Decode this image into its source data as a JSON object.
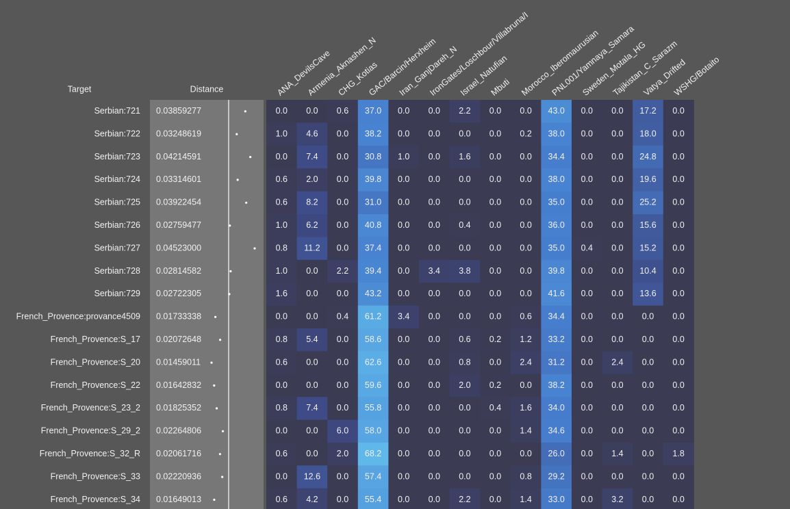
{
  "header": {
    "target": "Target",
    "distance": "Distance",
    "columns": [
      "ANA_DevilsCave",
      "Armenia_Aknashen_N",
      "CHG_Kotias",
      "GAC/Barcin/Herxheim",
      "Iran_GanjDareh_N",
      "IronGates/Loschbour/Villabruna/I",
      "Israel_Natufian",
      "Mbuti",
      "Morocco_Iberomaurusian",
      "PNL001/Yamnaya_Samara",
      "Sweden_Motala_HG",
      "Tajikistan_C_Sarazm",
      "Vatya_Drifted",
      "WSHG/Botaito"
    ]
  },
  "rows": [
    {
      "target": "Serbian:721",
      "distance": "0.03859277",
      "values": [
        "0.0",
        "0.0",
        "0.6",
        "37.0",
        "0.0",
        "0.0",
        "2.2",
        "0.0",
        "0.0",
        "43.0",
        "0.0",
        "0.0",
        "17.2",
        "0.0"
      ]
    },
    {
      "target": "Serbian:722",
      "distance": "0.03248619",
      "values": [
        "1.0",
        "4.6",
        "0.0",
        "38.2",
        "0.0",
        "0.0",
        "0.0",
        "0.0",
        "0.2",
        "38.0",
        "0.0",
        "0.0",
        "18.0",
        "0.0"
      ]
    },
    {
      "target": "Serbian:723",
      "distance": "0.04214591",
      "values": [
        "0.0",
        "7.4",
        "0.0",
        "30.8",
        "1.0",
        "0.0",
        "1.6",
        "0.0",
        "0.0",
        "34.4",
        "0.0",
        "0.0",
        "24.8",
        "0.0"
      ]
    },
    {
      "target": "Serbian:724",
      "distance": "0.03314601",
      "values": [
        "0.6",
        "2.0",
        "0.0",
        "39.8",
        "0.0",
        "0.0",
        "0.0",
        "0.0",
        "0.0",
        "38.0",
        "0.0",
        "0.0",
        "19.6",
        "0.0"
      ]
    },
    {
      "target": "Serbian:725",
      "distance": "0.03922454",
      "values": [
        "0.6",
        "8.2",
        "0.0",
        "31.0",
        "0.0",
        "0.0",
        "0.0",
        "0.0",
        "0.0",
        "35.0",
        "0.0",
        "0.0",
        "25.2",
        "0.0"
      ]
    },
    {
      "target": "Serbian:726",
      "distance": "0.02759477",
      "values": [
        "1.0",
        "6.2",
        "0.0",
        "40.8",
        "0.0",
        "0.0",
        "0.4",
        "0.0",
        "0.0",
        "36.0",
        "0.0",
        "0.0",
        "15.6",
        "0.0"
      ]
    },
    {
      "target": "Serbian:727",
      "distance": "0.04523000",
      "values": [
        "0.8",
        "11.2",
        "0.0",
        "37.4",
        "0.0",
        "0.0",
        "0.0",
        "0.0",
        "0.0",
        "35.0",
        "0.4",
        "0.0",
        "15.2",
        "0.0"
      ]
    },
    {
      "target": "Serbian:728",
      "distance": "0.02814582",
      "values": [
        "1.0",
        "0.0",
        "2.2",
        "39.4",
        "0.0",
        "3.4",
        "3.8",
        "0.0",
        "0.0",
        "39.8",
        "0.0",
        "0.0",
        "10.4",
        "0.0"
      ]
    },
    {
      "target": "Serbian:729",
      "distance": "0.02722305",
      "values": [
        "1.6",
        "0.0",
        "0.0",
        "43.2",
        "0.0",
        "0.0",
        "0.0",
        "0.0",
        "0.0",
        "41.6",
        "0.0",
        "0.0",
        "13.6",
        "0.0"
      ]
    },
    {
      "target": "French_Provence:provance4509",
      "distance": "0.01733338",
      "values": [
        "0.0",
        "0.0",
        "0.4",
        "61.2",
        "3.4",
        "0.0",
        "0.0",
        "0.0",
        "0.6",
        "34.4",
        "0.0",
        "0.0",
        "0.0",
        "0.0"
      ]
    },
    {
      "target": "French_Provence:S_17",
      "distance": "0.02072648",
      "values": [
        "0.8",
        "5.4",
        "0.0",
        "58.6",
        "0.0",
        "0.0",
        "0.6",
        "0.2",
        "1.2",
        "33.2",
        "0.0",
        "0.0",
        "0.0",
        "0.0"
      ]
    },
    {
      "target": "French_Provence:S_20",
      "distance": "0.01459011",
      "values": [
        "0.6",
        "0.0",
        "0.0",
        "62.6",
        "0.0",
        "0.0",
        "0.8",
        "0.0",
        "2.4",
        "31.2",
        "0.0",
        "2.4",
        "0.0",
        "0.0"
      ]
    },
    {
      "target": "French_Provence:S_22",
      "distance": "0.01642832",
      "values": [
        "0.0",
        "0.0",
        "0.0",
        "59.6",
        "0.0",
        "0.0",
        "2.0",
        "0.2",
        "0.0",
        "38.2",
        "0.0",
        "0.0",
        "0.0",
        "0.0"
      ]
    },
    {
      "target": "French_Provence:S_23_2",
      "distance": "0.01825352",
      "values": [
        "0.8",
        "7.4",
        "0.0",
        "55.8",
        "0.0",
        "0.0",
        "0.0",
        "0.4",
        "1.6",
        "34.0",
        "0.0",
        "0.0",
        "0.0",
        "0.0"
      ]
    },
    {
      "target": "French_Provence:S_29_2",
      "distance": "0.02264806",
      "values": [
        "0.0",
        "0.0",
        "6.0",
        "58.0",
        "0.0",
        "0.0",
        "0.0",
        "0.0",
        "1.4",
        "34.6",
        "0.0",
        "0.0",
        "0.0",
        "0.0"
      ]
    },
    {
      "target": "French_Provence:S_32_R",
      "distance": "0.02061716",
      "values": [
        "0.6",
        "0.0",
        "2.0",
        "68.2",
        "0.0",
        "0.0",
        "0.0",
        "0.0",
        "0.0",
        "26.0",
        "0.0",
        "1.4",
        "0.0",
        "1.8"
      ]
    },
    {
      "target": "French_Provence:S_33",
      "distance": "0.02220936",
      "values": [
        "0.0",
        "12.6",
        "0.0",
        "57.4",
        "0.0",
        "0.0",
        "0.0",
        "0.0",
        "0.8",
        "29.2",
        "0.0",
        "0.0",
        "0.0",
        "0.0"
      ]
    },
    {
      "target": "French_Provence:S_34",
      "distance": "0.01649013",
      "values": [
        "0.6",
        "4.2",
        "0.0",
        "55.4",
        "0.0",
        "0.0",
        "2.2",
        "0.0",
        "1.4",
        "33.0",
        "0.0",
        "3.2",
        "0.0",
        "0.0"
      ]
    }
  ]
}
